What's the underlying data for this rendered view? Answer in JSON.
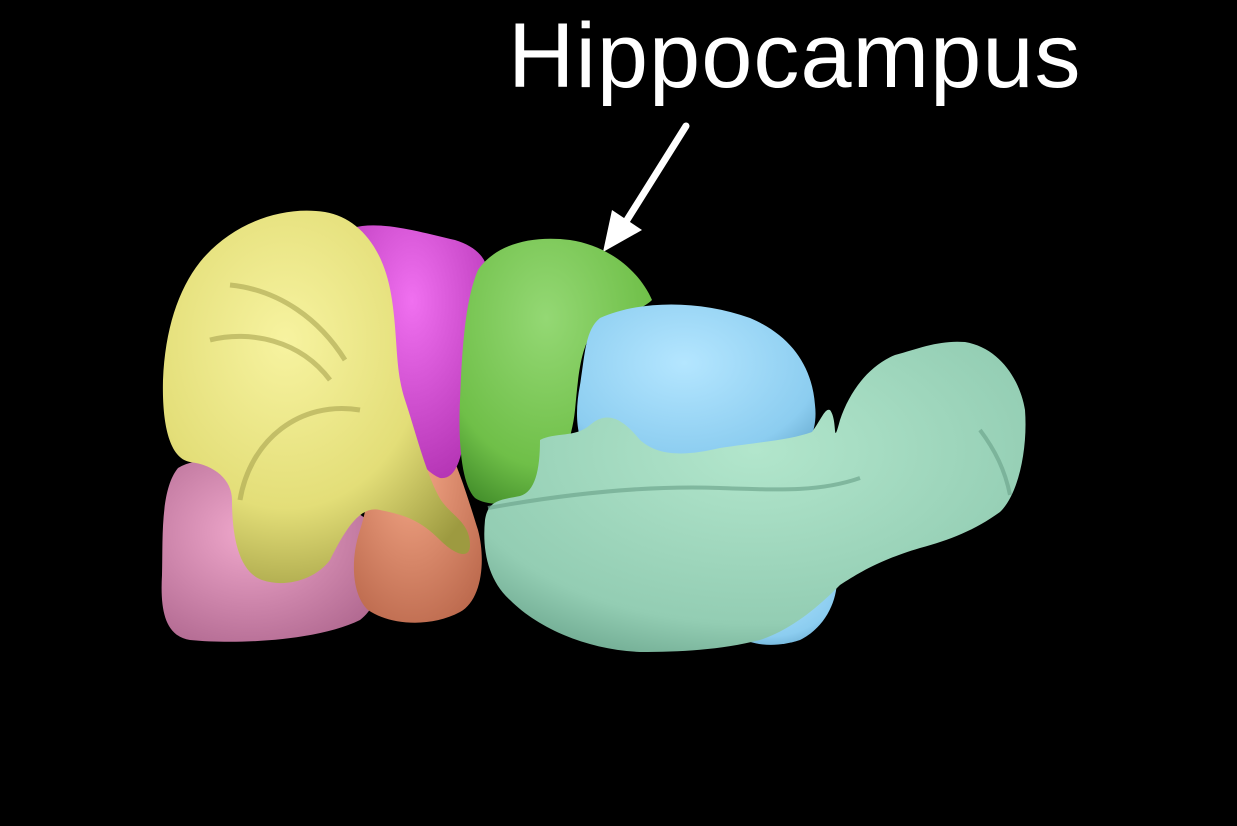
{
  "label": {
    "text": "Hippocampus",
    "color": "#ffffff"
  },
  "background_color": "#000000",
  "regions": [
    {
      "key": "cerebellum",
      "color": "#e8e37c"
    },
    {
      "key": "magenta-region",
      "color": "#e050e0"
    },
    {
      "key": "hippocampus",
      "color": "#7cc85a"
    },
    {
      "key": "blue-region",
      "color": "#8fd0f0"
    },
    {
      "key": "teal-region",
      "color": "#98d3b8"
    },
    {
      "key": "pink-region",
      "color": "#d88cb4"
    },
    {
      "key": "salmon-region",
      "color": "#e39070"
    }
  ]
}
